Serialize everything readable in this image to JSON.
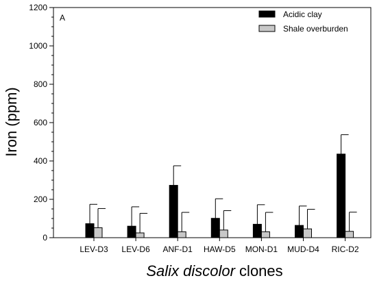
{
  "chart_data": {
    "type": "bar",
    "panel_label": "A",
    "categories": [
      "LEV-D3",
      "LEV-D6",
      "ANF-D1",
      "HAW-D5",
      "MON-D1",
      "MUD-D4",
      "RIC-D2"
    ],
    "series": [
      {
        "name": "Acidic clay",
        "color": "#000000",
        "values": [
          73,
          60,
          273,
          101,
          70,
          64,
          436
        ],
        "error_plus": [
          101,
          101,
          102,
          102,
          102,
          101,
          101
        ]
      },
      {
        "name": "Shale overburden",
        "color": "#c8c8c8",
        "values": [
          52,
          25,
          31,
          40,
          31,
          46,
          33
        ],
        "error_plus": [
          100,
          102,
          101,
          101,
          101,
          102,
          100
        ]
      }
    ],
    "ylabel": "Iron (ppm)",
    "xlabel_italic": "Salix discolor",
    "xlabel_rest": " clones",
    "ylim": [
      0,
      1200
    ],
    "y_major_ticks": [
      0,
      200,
      400,
      600,
      800,
      1000,
      1200
    ],
    "y_minor_step": 50,
    "legend_position": "top-right",
    "grid": false
  }
}
